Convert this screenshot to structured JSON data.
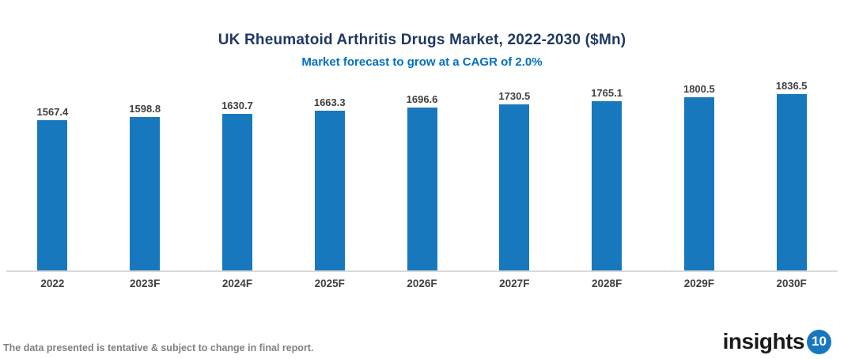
{
  "header": {
    "title": "UK Rheumatoid Arthritis Drugs Market, 2022-2030 ($Mn)",
    "subtitle": "Market forecast to grow at a CAGR of 2.0%"
  },
  "chart_data": {
    "type": "bar",
    "title": "UK Rheumatoid Arthritis Drugs Market, 2022-2030 ($Mn)",
    "subtitle": "Market forecast to grow at a CAGR of 2.0%",
    "categories": [
      "2022",
      "2023F",
      "2024F",
      "2025F",
      "2026F",
      "2027F",
      "2028F",
      "2029F",
      "2030F"
    ],
    "values": [
      1567.4,
      1598.8,
      1630.7,
      1663.3,
      1696.6,
      1730.5,
      1765.1,
      1800.5,
      1836.5
    ],
    "xlabel": "",
    "ylabel": "",
    "ylim": [
      0,
      1900
    ],
    "grid": false,
    "legend": false,
    "data_labels": true,
    "cagr": "2.0%"
  },
  "footer": {
    "disclaimer": "The data presented is tentative & subject to change in final report.",
    "logo_text": "insights",
    "logo_badge": "10"
  },
  "colors": {
    "bar": "#1878BE",
    "title": "#1F3864",
    "subtitle": "#0070C0",
    "label": "#404040",
    "axis_line": "#D9D9D9",
    "disclaimer": "#808080",
    "logo_badge_bg": "#1878BE"
  }
}
